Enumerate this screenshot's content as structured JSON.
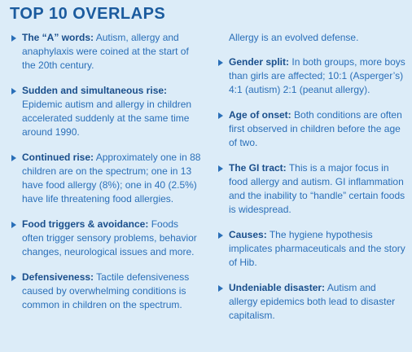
{
  "title": "TOP 10 OVERLAPS",
  "left_column": {
    "items": [
      {
        "heading": "The “A” words:",
        "text": "Autism, allergy and anaphylaxis were coined at the start of the 20th century."
      },
      {
        "heading": "Sudden and simultaneous rise:",
        "text": "Epidemic autism and allergy in children accelerated suddenly at the same time around 1990."
      },
      {
        "heading": "Continued rise:",
        "text": "Approximately one in 88 children are on the spectrum; one in 13 have food allergy (8%); one in 40 (2.5%) have life threatening food allergies."
      },
      {
        "heading": "Food triggers & avoidance:",
        "text": "Foods often trigger sensory problems, behavior changes, neurological issues and more."
      },
      {
        "heading": "Defensiveness:",
        "text": "Tactile defensiveness caused by overwhelming conditions is common in children on the spectrum."
      }
    ]
  },
  "right_column": {
    "continuation": "Allergy is an evolved defense.",
    "items": [
      {
        "heading": "Gender split:",
        "text": "In both groups, more boys than girls are affected; 10:1 (Asperger’s) 4:1 (autism) 2:1 (peanut allergy)."
      },
      {
        "heading": "Age of onset:",
        "text": "Both conditions are often first observed in children before the age of two."
      },
      {
        "heading": "The GI tract:",
        "text": "This is a major focus in food allergy and autism. GI inflammation and the inability to “handle” certain foods is widespread."
      },
      {
        "heading": "Causes:",
        "text": "The hygiene hypothesis implicates pharmaceuticals and the story of Hib."
      },
      {
        "heading": "Undeniable disaster:",
        "text": "Autism and allergy epidemics both lead to disaster capitalism."
      }
    ]
  }
}
